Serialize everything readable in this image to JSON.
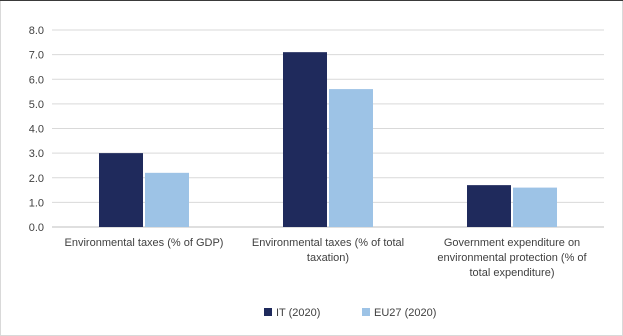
{
  "chart_data": {
    "type": "bar",
    "categories": [
      [
        "Environmental taxes (% of GDP)"
      ],
      [
        "Environmental taxes (% of total",
        "taxation)"
      ],
      [
        "Government expenditure on",
        "environmental protection (% of",
        "total expenditure)"
      ]
    ],
    "series": [
      {
        "name": "IT (2020)",
        "values": [
          3.0,
          7.1,
          1.7
        ],
        "color": "#1f2a5c"
      },
      {
        "name": "EU27 (2020)",
        "values": [
          2.2,
          5.6,
          1.6
        ],
        "color": "#9dc3e6"
      }
    ],
    "ylim": [
      0,
      8
    ],
    "yticks": [
      "0.0",
      "1.0",
      "2.0",
      "3.0",
      "4.0",
      "5.0",
      "6.0",
      "7.0",
      "8.0"
    ],
    "grid": true,
    "legend_position": "bottom"
  }
}
